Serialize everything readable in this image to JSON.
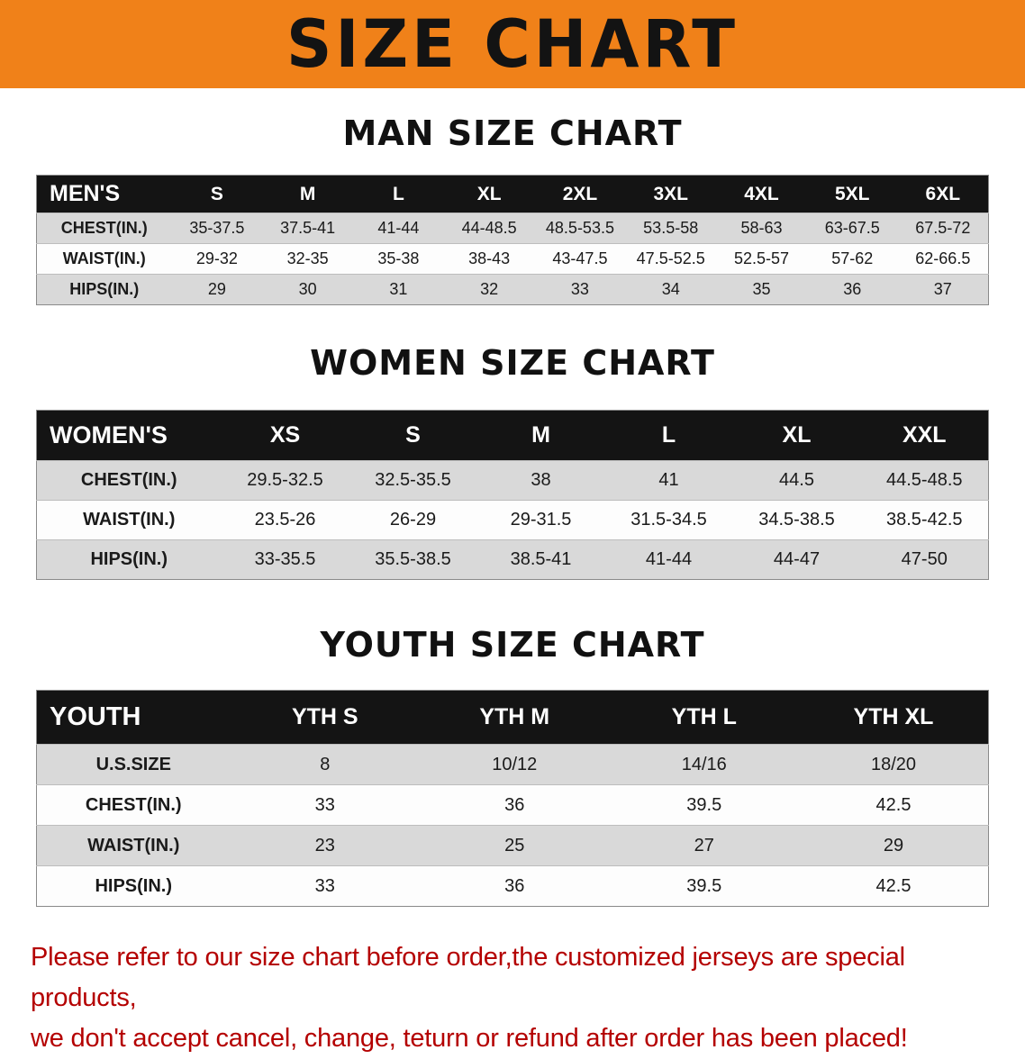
{
  "banner": {
    "title": "SIZE CHART",
    "bg_color": "#f08119",
    "text_color": "#131313"
  },
  "colors": {
    "table_header_bg": "#141414",
    "table_header_text": "#ffffff",
    "row_stripe": "#d9d9d9",
    "disclaimer_text": "#b40000"
  },
  "sections": [
    {
      "heading": "MAN SIZE CHART",
      "table": {
        "header": [
          "MEN'S",
          "S",
          "M",
          "L",
          "XL",
          "2XL",
          "3XL",
          "4XL",
          "5XL",
          "6XL"
        ],
        "rows": [
          [
            "CHEST(IN.)",
            "35-37.5",
            "37.5-41",
            "41-44",
            "44-48.5",
            "48.5-53.5",
            "53.5-58",
            "58-63",
            "63-67.5",
            "67.5-72"
          ],
          [
            "WAIST(IN.)",
            "29-32",
            "32-35",
            "35-38",
            "38-43",
            "43-47.5",
            "47.5-52.5",
            "52.5-57",
            "57-62",
            "62-66.5"
          ],
          [
            "HIPS(IN.)",
            "29",
            "30",
            "31",
            "32",
            "33",
            "34",
            "35",
            "36",
            "37"
          ]
        ]
      }
    },
    {
      "heading": "WOMEN SIZE CHART",
      "table": {
        "header": [
          "WOMEN'S",
          "XS",
          "S",
          "M",
          "L",
          "XL",
          "XXL"
        ],
        "rows": [
          [
            "CHEST(IN.)",
            "29.5-32.5",
            "32.5-35.5",
            "38",
            "41",
            "44.5",
            "44.5-48.5"
          ],
          [
            "WAIST(IN.)",
            "23.5-26",
            "26-29",
            "29-31.5",
            "31.5-34.5",
            "34.5-38.5",
            "38.5-42.5"
          ],
          [
            "HIPS(IN.)",
            "33-35.5",
            "35.5-38.5",
            "38.5-41",
            "41-44",
            "44-47",
            "47-50"
          ]
        ]
      }
    },
    {
      "heading": "YOUTH SIZE CHART",
      "table": {
        "header": [
          "YOUTH",
          "YTH S",
          "YTH M",
          "YTH L",
          "YTH XL"
        ],
        "rows": [
          [
            "U.S.SIZE",
            "8",
            "10/12",
            "14/16",
            "18/20"
          ],
          [
            "CHEST(IN.)",
            "33",
            "36",
            "39.5",
            "42.5"
          ],
          [
            "WAIST(IN.)",
            "23",
            "25",
            "27",
            "29"
          ],
          [
            "HIPS(IN.)",
            "33",
            "36",
            "39.5",
            "42.5"
          ]
        ]
      }
    }
  ],
  "disclaimer": "Please refer to our size chart before order,the customized jerseys are special products,\nwe don't accept cancel, change, teturn or refund after order has been placed!"
}
